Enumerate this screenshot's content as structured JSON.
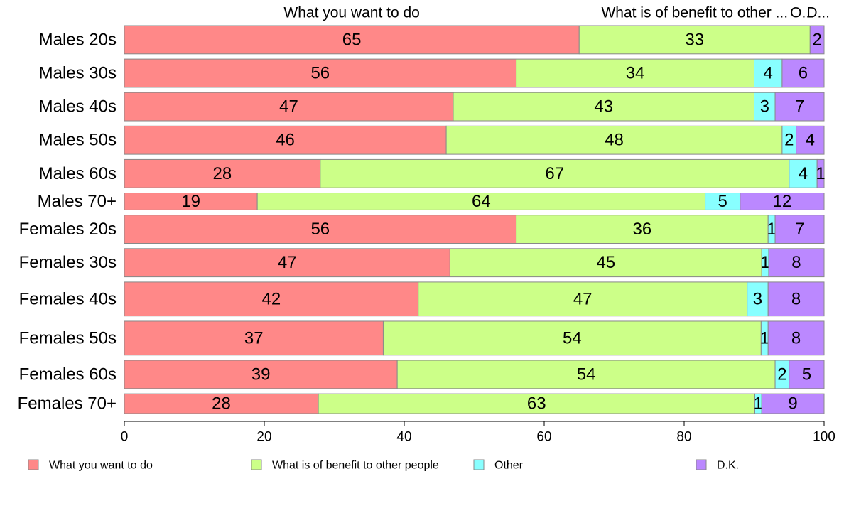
{
  "chart_data": {
    "type": "bar",
    "orientation": "horizontal",
    "stacked": true,
    "categories": [
      "Males 20s",
      "Males 30s",
      "Males 40s",
      "Males 50s",
      "Males 60s",
      "Males 70+",
      "Females 20s",
      "Females 30s",
      "Females 40s",
      "Females 50s",
      "Females 60s",
      "Females 70+"
    ],
    "series": [
      {
        "name": "What you want to do",
        "color": "#ff8888",
        "values": [
          65,
          56,
          47,
          46,
          28,
          19,
          56,
          47,
          42,
          37,
          39,
          28
        ]
      },
      {
        "name": "What is of benefit to other people",
        "color": "#ccff88",
        "values": [
          33,
          34,
          43,
          48,
          67,
          64,
          36,
          45,
          47,
          54,
          54,
          63
        ]
      },
      {
        "name": "Other",
        "color": "#88ffff",
        "values": [
          0,
          4,
          3,
          2,
          4,
          5,
          1,
          1,
          3,
          1,
          2,
          1
        ]
      },
      {
        "name": "D.K.",
        "color": "#bb88ff",
        "values": [
          2,
          6,
          7,
          4,
          1,
          12,
          7,
          8,
          8,
          8,
          5,
          9
        ]
      }
    ],
    "relative_bar_heights": [
      3,
      3,
      3,
      3,
      3,
      1.8,
      3,
      3,
      3.6,
      3.6,
      3,
      2.1
    ],
    "top_labels": [
      "What you want to do",
      "What is of benefit to other ...",
      "O...",
      "D..."
    ],
    "xlim": [
      0,
      100
    ],
    "xticks": [
      0,
      20,
      40,
      60,
      80,
      100
    ],
    "xlabel": "",
    "ylabel": "",
    "title": "",
    "grid": false,
    "legend_position": "bottom"
  }
}
